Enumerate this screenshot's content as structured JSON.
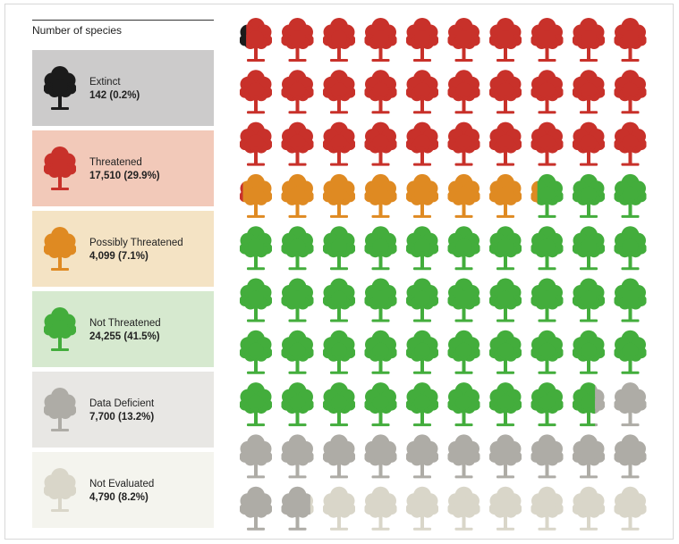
{
  "header": {
    "title": "Number of species"
  },
  "chart_data": {
    "type": "pictogram",
    "rows": 10,
    "cols": 10,
    "colors": {
      "extinct": "#1b1b1b",
      "threatened": "#c8312a",
      "possibly_threatened": "#df8a22",
      "not_threatened": "#43ad3c",
      "data_deficient": "#aeaca6",
      "not_evaluated": "#d9d6c9"
    },
    "categories": [
      {
        "key": "extinct",
        "label": "Extinct",
        "count_label": "142 (0.2%)",
        "value": 142,
        "percent": 0.2,
        "bg": "#cccbcb"
      },
      {
        "key": "threatened",
        "label": "Threatened",
        "count_label": "17,510 (29.9%)",
        "value": 17510,
        "percent": 29.9,
        "bg": "#f2c9b9"
      },
      {
        "key": "possibly_threatened",
        "label": "Possibly Threatened",
        "count_label": "4,099 (7.1%)",
        "value": 4099,
        "percent": 7.1,
        "bg": "#f4e3c4"
      },
      {
        "key": "not_threatened",
        "label": "Not Threatened",
        "count_label": "24,255 (41.5%)",
        "value": 24255,
        "percent": 41.5,
        "bg": "#d6e9cf"
      },
      {
        "key": "data_deficient",
        "label": "Data Deficient",
        "count_label": "7,700 (13.2%)",
        "value": 7700,
        "percent": 13.2,
        "bg": "#e8e7e4"
      },
      {
        "key": "not_evaluated",
        "label": "Not Evaluated",
        "count_label": "4,790 (8.2%)",
        "value": 4790,
        "percent": 8.2,
        "bg": "#f4f4ee"
      }
    ]
  }
}
